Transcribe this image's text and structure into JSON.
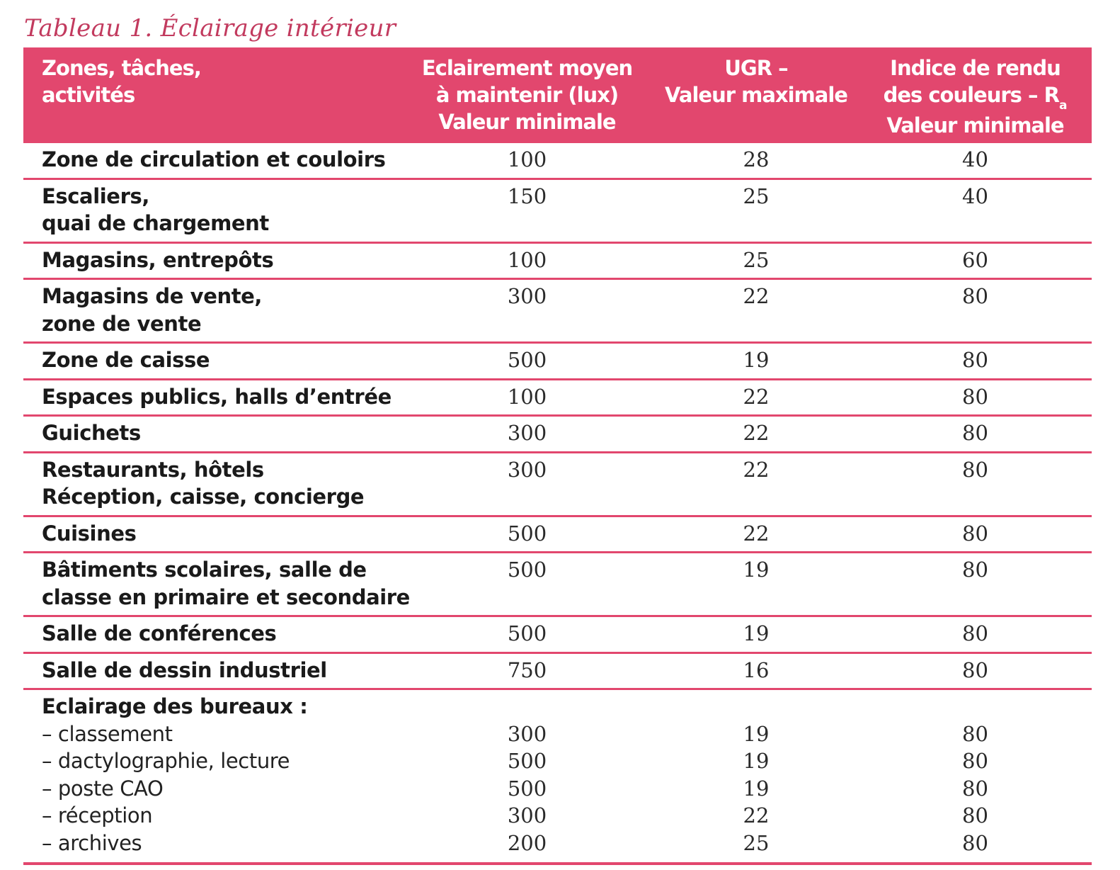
{
  "caption": "Tableau 1. Éclairage intérieur",
  "colors": {
    "accent": "#e2476e",
    "caption": "#c23a5e",
    "header_text": "#ffffff"
  },
  "headers": {
    "col1": [
      "Zones, tâches,",
      "activités"
    ],
    "col2": [
      "Eclairement moyen",
      "à maintenir (lux)",
      "Valeur minimale"
    ],
    "col3": [
      "UGR –",
      "Valeur maximale"
    ],
    "col4_line1": "Indice de rendu",
    "col4_line2": "des couleurs – R",
    "col4_sub": "a",
    "col4_line3": "Valeur minimale"
  },
  "rows": [
    {
      "lines": [
        "Zone de circulation et couloirs"
      ],
      "lux": "100",
      "ugr": "28",
      "ra": "40"
    },
    {
      "lines": [
        "Escaliers,",
        "quai de chargement"
      ],
      "lux": "150",
      "ugr": "25",
      "ra": "40"
    },
    {
      "lines": [
        "Magasins, entrepôts"
      ],
      "lux": "100",
      "ugr": "25",
      "ra": "60"
    },
    {
      "lines": [
        "Magasins de vente,",
        "zone de vente"
      ],
      "lux": "300",
      "ugr": "22",
      "ra": "80"
    },
    {
      "lines": [
        "Zone de caisse"
      ],
      "lux": "500",
      "ugr": "19",
      "ra": "80"
    },
    {
      "lines": [
        "Espaces publics, halls d’entrée"
      ],
      "lux": "100",
      "ugr": "22",
      "ra": "80"
    },
    {
      "lines": [
        "Guichets"
      ],
      "lux": "300",
      "ugr": "22",
      "ra": "80"
    },
    {
      "lines": [
        "Restaurants, hôtels",
        "Réception, caisse, concierge"
      ],
      "lux": "300",
      "ugr": "22",
      "ra": "80"
    },
    {
      "lines": [
        "Cuisines"
      ],
      "lux": "500",
      "ugr": "22",
      "ra": "80"
    },
    {
      "lines": [
        "Bâtiments scolaires, salle de",
        "classe en primaire et secondaire"
      ],
      "lux": "500",
      "ugr": "19",
      "ra": "80"
    },
    {
      "lines": [
        "Salle de conférences"
      ],
      "lux": "500",
      "ugr": "19",
      "ra": "80"
    },
    {
      "lines": [
        "Salle de dessin industriel"
      ],
      "lux": "750",
      "ugr": "16",
      "ra": "80"
    }
  ],
  "offices": {
    "title": "Eclairage des bureaux :",
    "items": [
      {
        "label": "– classement",
        "lux": "300",
        "ugr": "19",
        "ra": "80"
      },
      {
        "label": "– dactylographie, lecture",
        "lux": "500",
        "ugr": "19",
        "ra": "80"
      },
      {
        "label": "– poste CAO",
        "lux": "500",
        "ugr": "19",
        "ra": "80"
      },
      {
        "label": "– réception",
        "lux": "300",
        "ugr": "22",
        "ra": "80"
      },
      {
        "label": "– archives",
        "lux": "200",
        "ugr": "25",
        "ra": "80"
      }
    ]
  }
}
